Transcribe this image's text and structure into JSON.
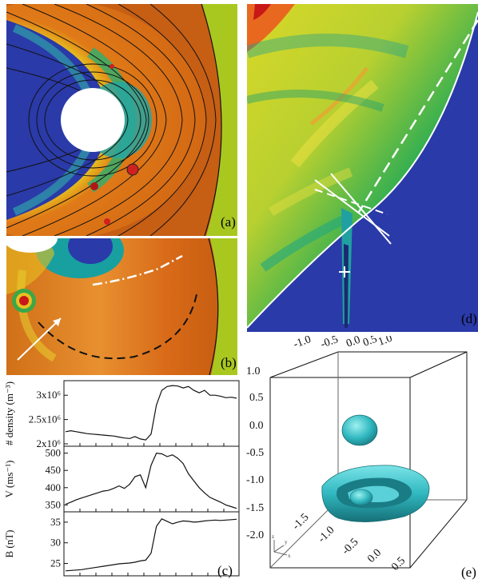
{
  "panels": {
    "a": {
      "label": "(a)"
    },
    "b": {
      "label": "(b)"
    },
    "c": {
      "label": "(c)"
    },
    "d": {
      "label": "(d)"
    },
    "e": {
      "label": "(e)"
    }
  },
  "colors": {
    "field_blue": "#2a3aa8",
    "sheath_orange": "#d06a18",
    "solar_wind_green": "#a8c820",
    "cyan_surface": "#30b8c0"
  },
  "chart_data": [
    {
      "type": "line",
      "panel": "c-top",
      "ylabel": "# density (m⁻³)",
      "yticks": [
        "2x10⁶",
        "2.5x10⁶",
        "3x10⁶"
      ],
      "ylim": [
        1950000,
        3300000
      ],
      "series": [
        {
          "values": [
            2250000,
            2270000,
            2250000,
            2230000,
            2210000,
            2200000,
            2190000,
            2180000,
            2170000,
            2160000,
            2140000,
            2120000,
            2110000,
            2150000,
            2100000,
            2080000,
            2200000,
            2800000,
            3100000,
            3180000,
            3200000,
            3190000,
            3150000,
            3180000,
            3100000,
            3050000,
            3100000,
            3000000,
            3000000,
            2980000,
            2950000,
            2960000,
            2940000
          ]
        }
      ]
    },
    {
      "type": "line",
      "panel": "c-middle",
      "ylabel": "V (ms⁻¹)",
      "yticks": [
        "350",
        "400",
        "450",
        "500"
      ],
      "ylim": [
        330,
        520
      ],
      "series": [
        {
          "values": [
            352,
            358,
            365,
            370,
            375,
            380,
            385,
            390,
            392,
            398,
            405,
            398,
            410,
            432,
            437,
            400,
            465,
            500,
            498,
            490,
            495,
            485,
            470,
            440,
            420,
            400,
            385,
            372,
            365,
            358,
            350,
            345,
            340
          ]
        }
      ]
    },
    {
      "type": "line",
      "panel": "c-bottom",
      "ylabel": "B (nT)",
      "yticks": [
        "25",
        "30",
        "35"
      ],
      "ylim": [
        22,
        37.5
      ],
      "series": [
        {
          "values": [
            23.2,
            23.3,
            23.4,
            23.5,
            23.7,
            23.9,
            24.1,
            24.3,
            24.5,
            24.7,
            24.9,
            25.0,
            25.1,
            25.3,
            25.6,
            25.8,
            27.5,
            34.0,
            35.8,
            35.2,
            34.6,
            35.0,
            35.3,
            35.2,
            35.0,
            35.1,
            35.3,
            35.4,
            35.5,
            35.4,
            35.5,
            35.6,
            35.7
          ]
        }
      ]
    }
  ],
  "panel_e": {
    "top_ticks": [
      "-1.0",
      "-0.5",
      "0.0",
      "0.5",
      "1.0"
    ],
    "left_ticks": [
      "1.0",
      "0.5",
      "0.0",
      "-0.5",
      "-1.0",
      "-1.5",
      "-2.0"
    ],
    "bottom_ticks": [
      "-1.5",
      "-1.0",
      "-0.5",
      "0.0",
      "0.5"
    ],
    "axes": {
      "z": "z",
      "y": "y",
      "x": "x"
    }
  }
}
